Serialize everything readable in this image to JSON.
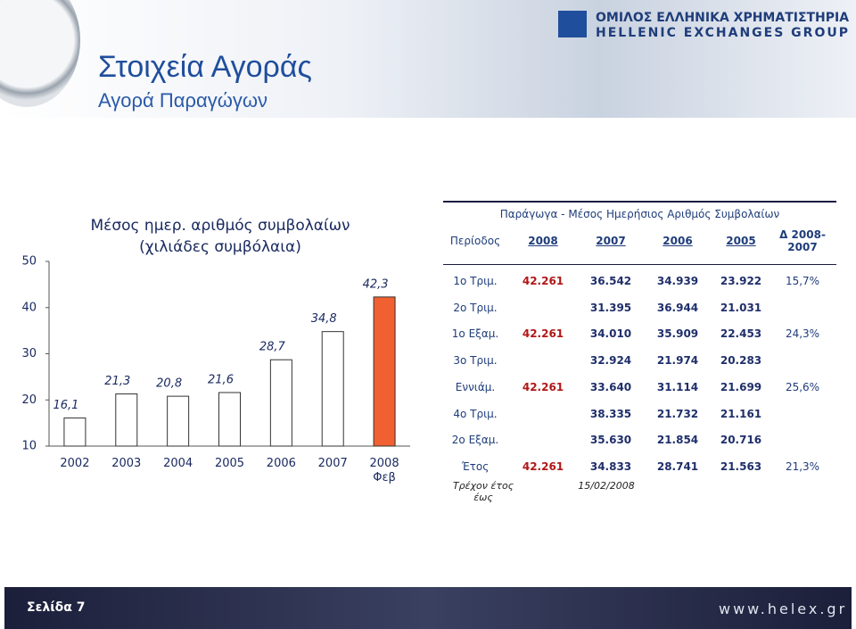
{
  "header": {
    "title": "Στοιχεία Αγοράς",
    "subtitle": "Αγορά Παραγώγων",
    "logo_line1": "ΟΜΙΛΟΣ ΕΛΛΗΝΙΚΑ ΧΡΗΜΑΤΙΣΤΗΡΙΑ",
    "logo_line2": "HELLENIC EXCHANGES GROUP"
  },
  "chart_data": {
    "type": "bar",
    "title": "Μέσος ημερ. αριθμός συμβολαίων",
    "subtitle": "(χιλιάδες συμβόλαια)",
    "categories": [
      "2002",
      "2003",
      "2004",
      "2005",
      "2006",
      "2007",
      "2008\nΦεβ"
    ],
    "values": [
      16.1,
      21.3,
      20.8,
      21.6,
      28.7,
      34.8,
      42.3
    ],
    "value_labels": [
      "16,1",
      "21,3",
      "20,8",
      "21,6",
      "28,7",
      "34,8",
      "42,3"
    ],
    "colors": [
      "#ffffff",
      "#ffffff",
      "#ffffff",
      "#ffffff",
      "#ffffff",
      "#ffffff",
      "#f06030"
    ],
    "ylim": [
      10,
      50
    ],
    "yticks": [
      10,
      20,
      30,
      40,
      50
    ],
    "grid": false
  },
  "table": {
    "title": "Παράγωγα - Μέσος Ημερήσιος Αριθμός Συμβολαίων",
    "header": [
      "Περίοδος",
      "2008",
      "2007",
      "2006",
      "2005",
      "Δ 2008-2007"
    ],
    "rows": [
      [
        "1ο Τριμ.",
        "42.261",
        "36.542",
        "34.939",
        "23.922",
        "15,7%"
      ],
      [
        "2ο Τριμ.",
        null,
        "31.395",
        "36.944",
        "21.031",
        null
      ],
      [
        "1ο Εξαμ.",
        "42.261",
        "34.010",
        "35.909",
        "22.453",
        "24,3%"
      ],
      [
        "3ο Τριμ.",
        null,
        "32.924",
        "21.974",
        "20.283",
        null
      ],
      [
        "Εννιάμ.",
        "42.261",
        "33.640",
        "31.114",
        "21.699",
        "25,6%"
      ],
      [
        "4ο Τριμ.",
        null,
        "38.335",
        "21.732",
        "21.161",
        null
      ],
      [
        "2ο Εξαμ.",
        null,
        "35.630",
        "21.854",
        "20.716",
        null
      ],
      [
        "Έτος",
        "42.261",
        "34.833",
        "28.741",
        "21.563",
        "21,3%"
      ]
    ],
    "note_label": "Τρέχον έτος έως",
    "note_date": "15/02/2008"
  },
  "footer": {
    "page": "Σελίδα 7",
    "url": "www.helex.gr"
  }
}
